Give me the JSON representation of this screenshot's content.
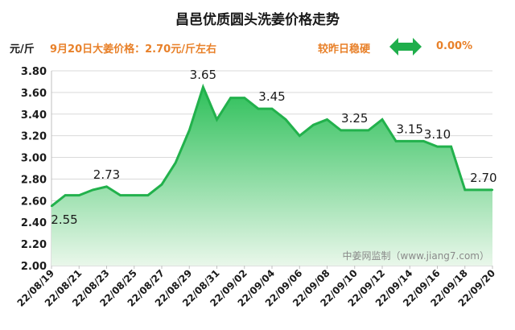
{
  "header": {
    "title": "昌邑优质圆头洗姜价格走势",
    "unit": "元/斤",
    "price_note": "9月20日大姜价格：2.70元/斤左右",
    "change_label": "较昨日稳硬",
    "change_value": "0.00%",
    "change_icon": "double-arrow-icon",
    "accent_color": "#e8812a",
    "line_color": "#22b14c"
  },
  "watermark": "中姜网监制（www.jiang7.com）",
  "chart_data": {
    "type": "area",
    "title": "昌邑优质圆头洗姜价格走势",
    "ylabel": "元/斤",
    "xlabel": "",
    "ylim": [
      2.0,
      3.8
    ],
    "yticks": [
      "2.00",
      "2.20",
      "2.40",
      "2.60",
      "2.80",
      "3.00",
      "3.20",
      "3.40",
      "3.60",
      "3.80"
    ],
    "grid": true,
    "x": [
      "22/08/19",
      "22/08/20",
      "22/08/21",
      "22/08/22",
      "22/08/23",
      "22/08/24",
      "22/08/25",
      "22/08/26",
      "22/08/27",
      "22/08/28",
      "22/08/29",
      "22/08/30",
      "22/08/31",
      "22/09/01",
      "22/09/02",
      "22/09/03",
      "22/09/04",
      "22/09/05",
      "22/09/06",
      "22/09/07",
      "22/09/08",
      "22/09/09",
      "22/09/10",
      "22/09/11",
      "22/09/12",
      "22/09/13",
      "22/09/14",
      "22/09/15",
      "22/09/16",
      "22/09/17",
      "22/09/18",
      "22/09/19",
      "22/09/20"
    ],
    "values": [
      2.55,
      2.65,
      2.65,
      2.7,
      2.73,
      2.65,
      2.65,
      2.65,
      2.75,
      2.95,
      3.25,
      3.65,
      3.35,
      3.55,
      3.55,
      3.45,
      3.45,
      3.35,
      3.2,
      3.3,
      3.35,
      3.25,
      3.25,
      3.25,
      3.35,
      3.15,
      3.15,
      3.15,
      3.1,
      3.1,
      2.7,
      2.7,
      2.7
    ],
    "tick_labels": [
      "22/08/19",
      "22/08/21",
      "22/08/23",
      "22/08/25",
      "22/08/27",
      "22/08/29",
      "22/08/31",
      "22/09/02",
      "22/09/04",
      "22/09/06",
      "22/09/08",
      "22/09/10",
      "22/09/12",
      "22/09/14",
      "22/09/16",
      "22/09/18",
      "22/09/20"
    ],
    "data_labels": [
      {
        "x": "22/08/19",
        "text": "2.55"
      },
      {
        "x": "22/08/23",
        "text": "2.73"
      },
      {
        "x": "22/08/30",
        "text": "3.65"
      },
      {
        "x": "22/09/04",
        "text": "3.45"
      },
      {
        "x": "22/09/10",
        "text": "3.25"
      },
      {
        "x": "22/09/14",
        "text": "3.15"
      },
      {
        "x": "22/09/16",
        "text": "3.10"
      },
      {
        "x": "22/09/19",
        "text": "2.70"
      }
    ]
  }
}
